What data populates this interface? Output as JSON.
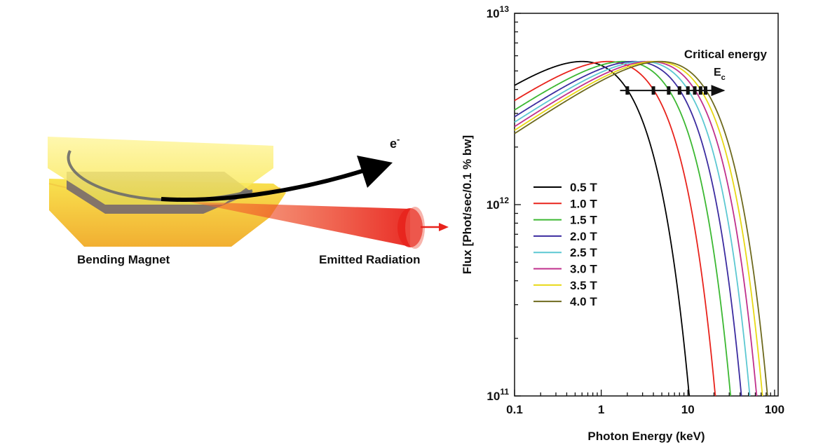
{
  "illustration": {
    "magnet_label": "Bending Magnet",
    "radiation_label": "Emitted Radiation",
    "electron_label": "e",
    "electron_sup": "-",
    "colors": {
      "magnet": "#f7e84a",
      "magnet_edge": "#f0b030",
      "beam": "#e8231c",
      "orbit": "#555555"
    }
  },
  "chart_data": {
    "type": "line",
    "xlabel": "Photon Energy (keV)",
    "ylabel": "Flux [Phot/sec/0.1 % bw]",
    "xscale": "log",
    "yscale": "log",
    "xlim": [
      0.1,
      110
    ],
    "ylim": [
      100000000000.0,
      10000000000000.0
    ],
    "x_ticks": [
      {
        "value": 0.1,
        "label": "0.1"
      },
      {
        "value": 1,
        "label": "1"
      },
      {
        "value": 10,
        "label": "10"
      },
      {
        "value": 100,
        "label": "100"
      }
    ],
    "y_ticks": [
      {
        "value": 100000000000.0,
        "base": "10",
        "exp": "11"
      },
      {
        "value": 1000000000000.0,
        "base": "10",
        "exp": "12"
      },
      {
        "value": 10000000000000.0,
        "base": "10",
        "exp": "13"
      }
    ],
    "peak_flux": 5600000000000.0,
    "series": [
      {
        "name": "0.5 T",
        "color": "#000000",
        "critical_energy_keV": 2.0
      },
      {
        "name": "1.0 T",
        "color": "#e8231c",
        "critical_energy_keV": 4.0
      },
      {
        "name": "1.5 T",
        "color": "#3cb832",
        "critical_energy_keV": 6.0
      },
      {
        "name": "2.0 T",
        "color": "#3c2ca0",
        "critical_energy_keV": 8.0
      },
      {
        "name": "2.5 T",
        "color": "#5cc8d2",
        "critical_energy_keV": 10.0
      },
      {
        "name": "3.0 T",
        "color": "#c0308c",
        "critical_energy_keV": 12.0
      },
      {
        "name": "3.5 T",
        "color": "#e8d814",
        "critical_energy_keV": 14.0
      },
      {
        "name": "4.0 T",
        "color": "#6e6a1e",
        "critical_energy_keV": 16.0
      }
    ],
    "annotation": {
      "title": "Critical energy",
      "symbol": "E",
      "subscript": "c",
      "markers_keV": [
        2,
        4,
        6,
        8,
        10,
        12,
        14,
        16
      ]
    },
    "legend_position": "center-left",
    "grid": false
  }
}
